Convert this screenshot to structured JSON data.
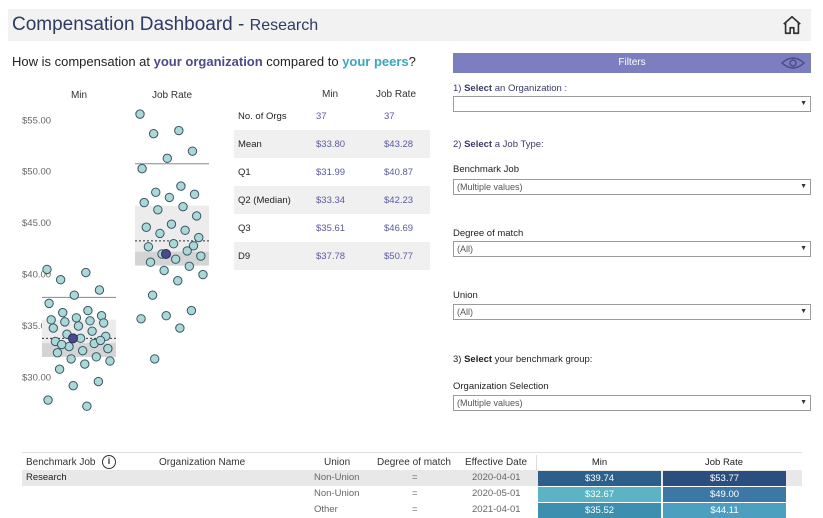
{
  "header": {
    "title": "Compensation Dashboard - ",
    "subtitle": "Research",
    "home_icon": "home-icon"
  },
  "question": {
    "prefix": "How is compensation at ",
    "org": "your organization",
    "middle": " compared to ",
    "peers": "your peers",
    "suffix": "?"
  },
  "chart_data": {
    "type": "scatter",
    "columns": [
      "Min",
      "Job Rate"
    ],
    "yticks": [
      "$55.00",
      "$50.00",
      "$45.00",
      "$40.00",
      "$35.00",
      "$30.00"
    ],
    "ylim": [
      28,
      56
    ],
    "series": [
      {
        "name": "Min",
        "values": [
          40.5,
          40.2,
          39.5,
          38.5,
          38.0,
          37.2,
          36.5,
          36.3,
          36.0,
          35.8,
          35.6,
          35.5,
          35.4,
          35.3,
          35.0,
          34.8,
          34.5,
          34.2,
          34.0,
          33.8,
          33.5,
          33.3,
          33.0,
          32.8,
          32.6,
          32.4,
          32.0,
          31.8,
          31.6,
          31.3,
          30.8,
          29.6,
          29.2,
          27.8,
          27.2,
          33.2,
          33.6
        ],
        "org_value": 33.8,
        "median": 33.34,
        "q1": 31.99,
        "q3": 35.61,
        "d9": 37.78,
        "mean": 33.8
      },
      {
        "name": "Job Rate",
        "values": [
          55.6,
          54.0,
          53.7,
          52.0,
          51.3,
          50.3,
          48.6,
          48.0,
          47.8,
          47.5,
          47.0,
          46.6,
          46.3,
          45.7,
          44.9,
          44.6,
          44.3,
          44.0,
          43.6,
          43.0,
          42.7,
          42.3,
          42.0,
          41.8,
          41.5,
          41.2,
          40.8,
          40.4,
          40.0,
          39.4,
          38.0,
          36.5,
          36.0,
          35.7,
          34.8,
          31.8,
          42.8
        ],
        "org_value": 42.0,
        "median": 42.23,
        "q1": 40.87,
        "q3": 46.69,
        "d9": 50.77,
        "mean": 43.28
      }
    ]
  },
  "stats": {
    "col_min": "Min",
    "col_job": "Job Rate",
    "rows": [
      {
        "label": "No. of Orgs",
        "min": "37",
        "job": "37"
      },
      {
        "label": "Mean",
        "min": "$33.80",
        "job": "$43.28"
      },
      {
        "label": "Q1",
        "min": "$31.99",
        "job": "$40.87"
      },
      {
        "label": "Q2 (Median)",
        "min": "$33.34",
        "job": "$42.23"
      },
      {
        "label": "Q3",
        "min": "$35.61",
        "job": "$46.69"
      },
      {
        "label": "D9",
        "min": "$37.78",
        "job": "$50.77"
      }
    ]
  },
  "filters": {
    "title": "Filters",
    "eye_icon": "eye-icon",
    "step1_num": "1) ",
    "step1_bold": "Select",
    "step1_rest": " an Organization :",
    "org_value": "",
    "step2_num": "2) ",
    "step2_bold": "Select",
    "step2_rest": " a Job Type:",
    "benchmark_label": "Benchmark Job",
    "benchmark_value": "(Multiple values)",
    "degree_label": "Degree of match",
    "degree_value": "(All)",
    "union_label": "Union",
    "union_value": "(All)",
    "step3_num": "3) ",
    "step3_bold": "Select",
    "step3_rest": " your benchmark group:",
    "orgsel_label": "Organization Selection",
    "orgsel_value": "(Multiple values)"
  },
  "table": {
    "headers": {
      "benchmark": "Benchmark Job",
      "org": "Organization Name",
      "union": "Union",
      "degree": "Degree of match",
      "date": "Effective Date",
      "min": "Min",
      "job": "Job Rate"
    },
    "rows": [
      {
        "benchmark": "Research",
        "union": "Non-Union",
        "degree": "=",
        "date": "2020-04-01",
        "min": "$39.74",
        "job": "$53.77",
        "min_color": "#2c5f8a",
        "job_color": "#2a4f7e"
      },
      {
        "benchmark": "",
        "union": "Non-Union",
        "degree": "=",
        "date": "2020-05-01",
        "min": "$32.67",
        "job": "$49.00",
        "min_color": "#5bb3c4",
        "job_color": "#3b78a5"
      },
      {
        "benchmark": "",
        "union": "Other",
        "degree": "=",
        "date": "2021-04-01",
        "min": "$35.52",
        "job": "$44.11",
        "min_color": "#3d8fb0",
        "job_color": "#4d9fc0"
      }
    ]
  }
}
